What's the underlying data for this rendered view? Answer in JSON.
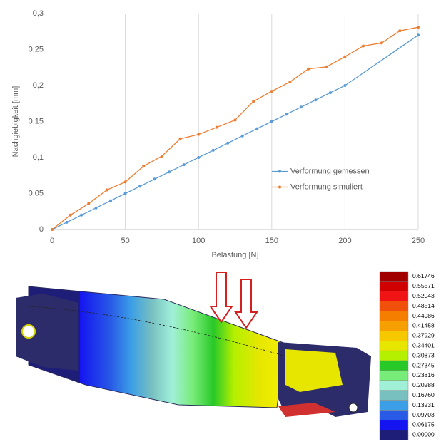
{
  "chart_data": {
    "type": "line",
    "x_label": "Belastung [N]",
    "y_label": "Nachgiebigkeit [mm]",
    "xlim": [
      0,
      250
    ],
    "xticks": [
      0,
      50,
      100,
      150,
      200,
      250
    ],
    "ylim": [
      0,
      0.3
    ],
    "yticks": [
      0,
      {
        "value": 0.05,
        "label": "0,05"
      },
      {
        "value": 0.1,
        "label": "0,1"
      },
      {
        "value": 0.15,
        "label": "0,15"
      },
      {
        "value": 0.2,
        "label": "0,2"
      },
      {
        "value": 0.25,
        "label": "0,25"
      },
      {
        "value": 0.3,
        "label": "0,3"
      }
    ],
    "grid": "x",
    "legend": "center right",
    "series": [
      {
        "name": "Verformung gemessen",
        "color": "#5b9bd5",
        "x": [
          0,
          10,
          20,
          30,
          40,
          50,
          60,
          70,
          80,
          90,
          100,
          110,
          120,
          130,
          140,
          150,
          160,
          170,
          180,
          190,
          200,
          250
        ],
        "values": [
          0,
          0.01,
          0.02,
          0.03,
          0.04,
          0.05,
          0.06,
          0.07,
          0.08,
          0.09,
          0.1,
          0.11,
          0.12,
          0.13,
          0.14,
          0.15,
          0.16,
          0.17,
          0.18,
          0.19,
          0.2,
          0.27
        ]
      },
      {
        "name": "Verformung simuliert",
        "color": "#ed7d31",
        "x": [
          0,
          12.5,
          25,
          37.5,
          50,
          62.5,
          75,
          87.5,
          100,
          112.5,
          125,
          137.5,
          150,
          162.5,
          175,
          187.5,
          200,
          212.5,
          225,
          237.5,
          250
        ],
        "values": [
          0,
          0.02,
          0.036,
          0.055,
          0.066,
          0.088,
          0.102,
          0.126,
          0.132,
          0.142,
          0.152,
          0.178,
          0.192,
          0.205,
          0.223,
          0.226,
          0.24,
          0.255,
          0.259,
          0.276,
          0.281
        ]
      }
    ]
  },
  "fea_legend": {
    "labels": [
      "0.61746",
      "0.55571",
      "0.52043",
      "0.48514",
      "0.44986",
      "0.41458",
      "0.37929",
      "0.34401",
      "0.30873",
      "0.27345",
      "0.23816",
      "0.20288",
      "0.16760",
      "0.13231",
      "0.09703",
      "0.06175",
      "0.00000"
    ],
    "colors": [
      "#a00000",
      "#d00000",
      "#f01414",
      "#f0500a",
      "#f57d00",
      "#f5a000",
      "#f5c800",
      "#e6e600",
      "#b4f000",
      "#28c828",
      "#78ec78",
      "#a0f0d8",
      "#78c0c0",
      "#3c9ee6",
      "#285ae6",
      "#1414f0",
      "#1e1e78"
    ]
  }
}
